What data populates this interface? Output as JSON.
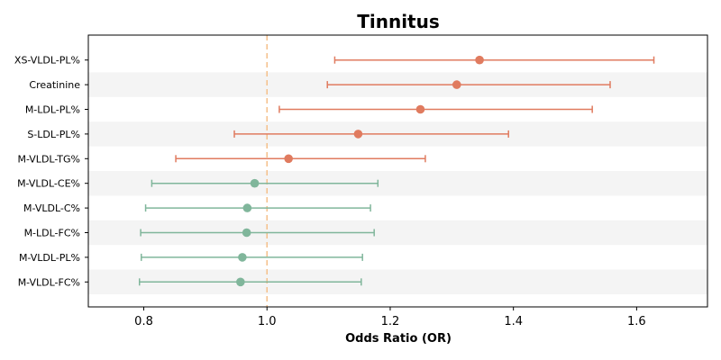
{
  "chart_data": {
    "type": "forest",
    "title": "Tinnitus",
    "xlabel": "Odds Ratio (OR)",
    "xlim": [
      0.71,
      1.715
    ],
    "xticks": [
      "0.8",
      "1.0",
      "1.2",
      "1.4",
      "1.6"
    ],
    "reference_line": 1.0,
    "rows": [
      {
        "label": "XS-VLDL-PL%",
        "or": 1.345,
        "lower": 1.11,
        "upper": 1.628,
        "color": "#e07b5f"
      },
      {
        "label": "Creatinine",
        "or": 1.308,
        "lower": 1.098,
        "upper": 1.557,
        "color": "#e07b5f"
      },
      {
        "label": "M-LDL-PL%",
        "or": 1.249,
        "lower": 1.02,
        "upper": 1.528,
        "color": "#e07b5f"
      },
      {
        "label": "S-LDL-PL%",
        "or": 1.148,
        "lower": 0.947,
        "upper": 1.392,
        "color": "#e07b5f"
      },
      {
        "label": "M-VLDL-TG%",
        "or": 1.035,
        "lower": 0.852,
        "upper": 1.257,
        "color": "#e07b5f"
      },
      {
        "label": "M-VLDL-CE%",
        "or": 0.98,
        "lower": 0.813,
        "upper": 1.18,
        "color": "#80b69b"
      },
      {
        "label": "M-VLDL-C%",
        "or": 0.968,
        "lower": 0.803,
        "upper": 1.168,
        "color": "#80b69b"
      },
      {
        "label": "M-LDL-FC%",
        "or": 0.967,
        "lower": 0.795,
        "upper": 1.174,
        "color": "#80b69b"
      },
      {
        "label": "M-VLDL-PL%",
        "or": 0.96,
        "lower": 0.796,
        "upper": 1.155,
        "color": "#80b69b"
      },
      {
        "label": "M-VLDL-FC%",
        "or": 0.957,
        "lower": 0.793,
        "upper": 1.153,
        "color": "#80b69b"
      }
    ],
    "ref_color": "#f5c08a",
    "band_color": "#f4f4f4"
  }
}
